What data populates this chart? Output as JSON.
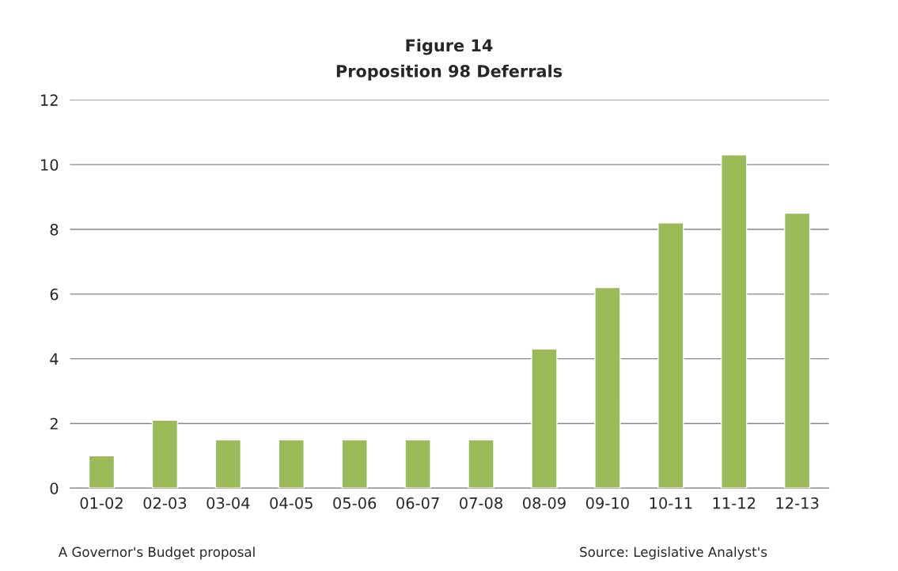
{
  "chart_data": {
    "type": "bar",
    "title": "Figure 14",
    "subtitle": "Proposition 98 Deferrals",
    "categories": [
      "01-02",
      "02-03",
      "03-04",
      "04-05",
      "05-06",
      "06-07",
      "07-08",
      "08-09",
      "09-10",
      "10-11",
      "11-12",
      "12-13"
    ],
    "values": [
      1.0,
      2.1,
      1.5,
      1.5,
      1.5,
      1.5,
      1.5,
      4.3,
      6.2,
      8.2,
      10.3,
      8.5
    ],
    "color": "#9bbb59",
    "ylim": [
      0,
      12
    ],
    "yticks": [
      0,
      2,
      4,
      6,
      8,
      10,
      12
    ],
    "grid": "y",
    "legend": false,
    "annotations": [
      "A Governor's Budget proposal",
      "Source: Legislative Analyst's"
    ]
  }
}
